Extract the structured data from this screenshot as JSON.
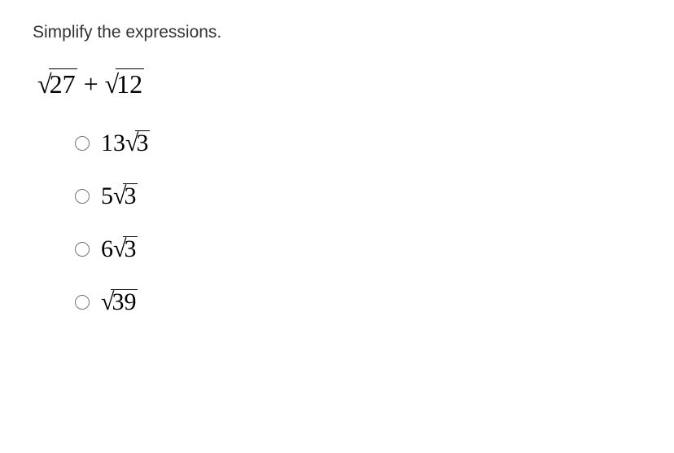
{
  "prompt": {
    "text": "Simplify the expressions.",
    "text_color": "#333333",
    "fontsize": 21
  },
  "expression": {
    "type": "sum_of_sqrts",
    "terms": [
      {
        "radicand": "27"
      },
      {
        "radicand": "12"
      }
    ],
    "plus": " + ",
    "fontsize": 32,
    "text_color": "#000000",
    "border_top_width": 1.6
  },
  "options": [
    {
      "coef": "13",
      "radicand": "3"
    },
    {
      "coef": "5",
      "radicand": "3"
    },
    {
      "coef": "6",
      "radicand": "3"
    },
    {
      "coef": "",
      "radicand": "39"
    }
  ],
  "option_style": {
    "fontsize": 30,
    "text_color": "#000000",
    "border_top_width": 1.6
  },
  "radio": {
    "name": "answer",
    "selected_index": null
  },
  "background_color": "#ffffff"
}
